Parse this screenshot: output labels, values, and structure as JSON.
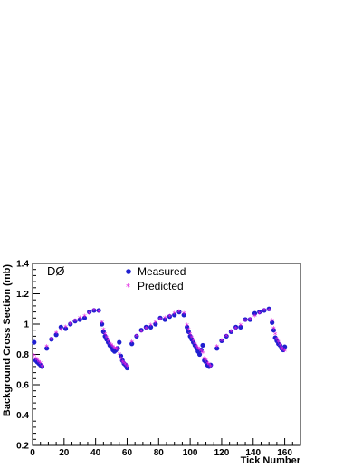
{
  "chart_data": {
    "type": "scatter",
    "title": "",
    "annotation": "DØ",
    "xlabel": "Tick Number",
    "ylabel": "Background Cross Section (mb)",
    "xlim": [
      0,
      170
    ],
    "ylim": [
      0.2,
      1.4
    ],
    "x_ticks": [
      0,
      20,
      40,
      60,
      80,
      100,
      120,
      140,
      160
    ],
    "y_ticks": [
      0.2,
      0.4,
      0.6,
      0.8,
      1.0,
      1.2,
      1.4
    ],
    "x_tick_labels": [
      "0",
      "20",
      "40",
      "60",
      "80",
      "100",
      "120",
      "140",
      "160"
    ],
    "y_tick_labels": [
      "0.2",
      "0.4",
      "0.6",
      "0.8",
      "1",
      "1.2",
      "1.4"
    ],
    "grid": false,
    "legend_position": "top-center",
    "series": [
      {
        "name": "Measured",
        "color": "#1f1fd0",
        "marker": "circle",
        "points": [
          [
            1,
            0.88
          ],
          [
            2,
            0.76
          ],
          [
            3,
            0.75
          ],
          [
            4,
            0.74
          ],
          [
            5,
            0.73
          ],
          [
            6,
            0.72
          ],
          [
            9,
            0.84
          ],
          [
            12,
            0.9
          ],
          [
            15,
            0.93
          ],
          [
            18,
            0.98
          ],
          [
            21,
            0.97
          ],
          [
            24,
            1.0
          ],
          [
            27,
            1.02
          ],
          [
            30,
            1.03
          ],
          [
            33,
            1.04
          ],
          [
            36,
            1.08
          ],
          [
            39,
            1.09
          ],
          [
            42,
            1.09
          ],
          [
            44,
            1.0
          ],
          [
            45,
            0.95
          ],
          [
            46,
            0.92
          ],
          [
            47,
            0.9
          ],
          [
            48,
            0.88
          ],
          [
            49,
            0.86
          ],
          [
            50,
            0.85
          ],
          [
            51,
            0.83
          ],
          [
            52,
            0.82
          ],
          [
            53,
            0.83
          ],
          [
            54,
            0.84
          ],
          [
            55,
            0.88
          ],
          [
            56,
            0.79
          ],
          [
            57,
            0.76
          ],
          [
            58,
            0.74
          ],
          [
            59,
            0.73
          ],
          [
            60,
            0.71
          ],
          [
            63,
            0.87
          ],
          [
            66,
            0.92
          ],
          [
            69,
            0.96
          ],
          [
            72,
            0.98
          ],
          [
            75,
            0.98
          ],
          [
            78,
            1.0
          ],
          [
            81,
            1.04
          ],
          [
            84,
            1.03
          ],
          [
            87,
            1.05
          ],
          [
            90,
            1.06
          ],
          [
            93,
            1.08
          ],
          [
            96,
            1.06
          ],
          [
            98,
            0.98
          ],
          [
            99,
            0.95
          ],
          [
            100,
            0.92
          ],
          [
            101,
            0.9
          ],
          [
            102,
            0.88
          ],
          [
            103,
            0.86
          ],
          [
            104,
            0.84
          ],
          [
            105,
            0.82
          ],
          [
            106,
            0.8
          ],
          [
            107,
            0.83
          ],
          [
            108,
            0.86
          ],
          [
            109,
            0.76
          ],
          [
            110,
            0.75
          ],
          [
            111,
            0.73
          ],
          [
            112,
            0.72
          ],
          [
            113,
            0.73
          ],
          [
            117,
            0.84
          ],
          [
            120,
            0.89
          ],
          [
            123,
            0.92
          ],
          [
            126,
            0.95
          ],
          [
            129,
            0.98
          ],
          [
            132,
            0.98
          ],
          [
            135,
            1.03
          ],
          [
            138,
            1.03
          ],
          [
            141,
            1.07
          ],
          [
            144,
            1.08
          ],
          [
            147,
            1.09
          ],
          [
            150,
            1.1
          ],
          [
            152,
            1.01
          ],
          [
            153,
            0.96
          ],
          [
            154,
            0.91
          ],
          [
            155,
            0.89
          ],
          [
            156,
            0.87
          ],
          [
            157,
            0.86
          ],
          [
            158,
            0.84
          ],
          [
            159,
            0.83
          ],
          [
            160,
            0.85
          ]
        ]
      },
      {
        "name": "Predicted",
        "color": "#e020e0",
        "marker": "star",
        "points": [
          [
            1,
            0.79
          ],
          [
            2,
            0.77
          ],
          [
            3,
            0.76
          ],
          [
            4,
            0.75
          ],
          [
            5,
            0.74
          ],
          [
            6,
            0.72
          ],
          [
            9,
            0.85
          ],
          [
            12,
            0.9
          ],
          [
            15,
            0.94
          ],
          [
            18,
            0.96
          ],
          [
            21,
            0.98
          ],
          [
            24,
            1.0
          ],
          [
            27,
            1.02
          ],
          [
            30,
            1.04
          ],
          [
            33,
            1.05
          ],
          [
            36,
            1.07
          ],
          [
            39,
            1.09
          ],
          [
            42,
            1.08
          ],
          [
            44,
            1.01
          ],
          [
            45,
            0.96
          ],
          [
            46,
            0.93
          ],
          [
            47,
            0.91
          ],
          [
            48,
            0.89
          ],
          [
            49,
            0.87
          ],
          [
            50,
            0.86
          ],
          [
            51,
            0.85
          ],
          [
            52,
            0.84
          ],
          [
            53,
            0.84
          ],
          [
            54,
            0.83
          ],
          [
            55,
            0.8
          ],
          [
            56,
            0.77
          ],
          [
            57,
            0.75
          ],
          [
            58,
            0.74
          ],
          [
            59,
            0.73
          ],
          [
            60,
            0.72
          ],
          [
            63,
            0.88
          ],
          [
            66,
            0.92
          ],
          [
            69,
            0.95
          ],
          [
            72,
            0.97
          ],
          [
            75,
            0.99
          ],
          [
            78,
            1.01
          ],
          [
            81,
            1.03
          ],
          [
            84,
            1.04
          ],
          [
            87,
            1.05
          ],
          [
            90,
            1.07
          ],
          [
            93,
            1.08
          ],
          [
            96,
            1.07
          ],
          [
            98,
            0.99
          ],
          [
            99,
            0.96
          ],
          [
            100,
            0.93
          ],
          [
            101,
            0.91
          ],
          [
            102,
            0.89
          ],
          [
            103,
            0.87
          ],
          [
            104,
            0.85
          ],
          [
            105,
            0.84
          ],
          [
            106,
            0.83
          ],
          [
            107,
            0.82
          ],
          [
            108,
            0.81
          ],
          [
            109,
            0.77
          ],
          [
            110,
            0.76
          ],
          [
            111,
            0.74
          ],
          [
            112,
            0.73
          ],
          [
            113,
            0.72
          ],
          [
            117,
            0.85
          ],
          [
            120,
            0.89
          ],
          [
            123,
            0.92
          ],
          [
            126,
            0.95
          ],
          [
            129,
            0.97
          ],
          [
            132,
            0.99
          ],
          [
            135,
            1.02
          ],
          [
            138,
            1.03
          ],
          [
            141,
            1.05
          ],
          [
            144,
            1.07
          ],
          [
            147,
            1.09
          ],
          [
            150,
            1.09
          ],
          [
            152,
            1.02
          ],
          [
            153,
            0.97
          ],
          [
            154,
            0.93
          ],
          [
            155,
            0.9
          ],
          [
            156,
            0.88
          ],
          [
            157,
            0.86
          ],
          [
            158,
            0.84
          ],
          [
            159,
            0.83
          ],
          [
            160,
            0.82
          ]
        ]
      }
    ]
  }
}
